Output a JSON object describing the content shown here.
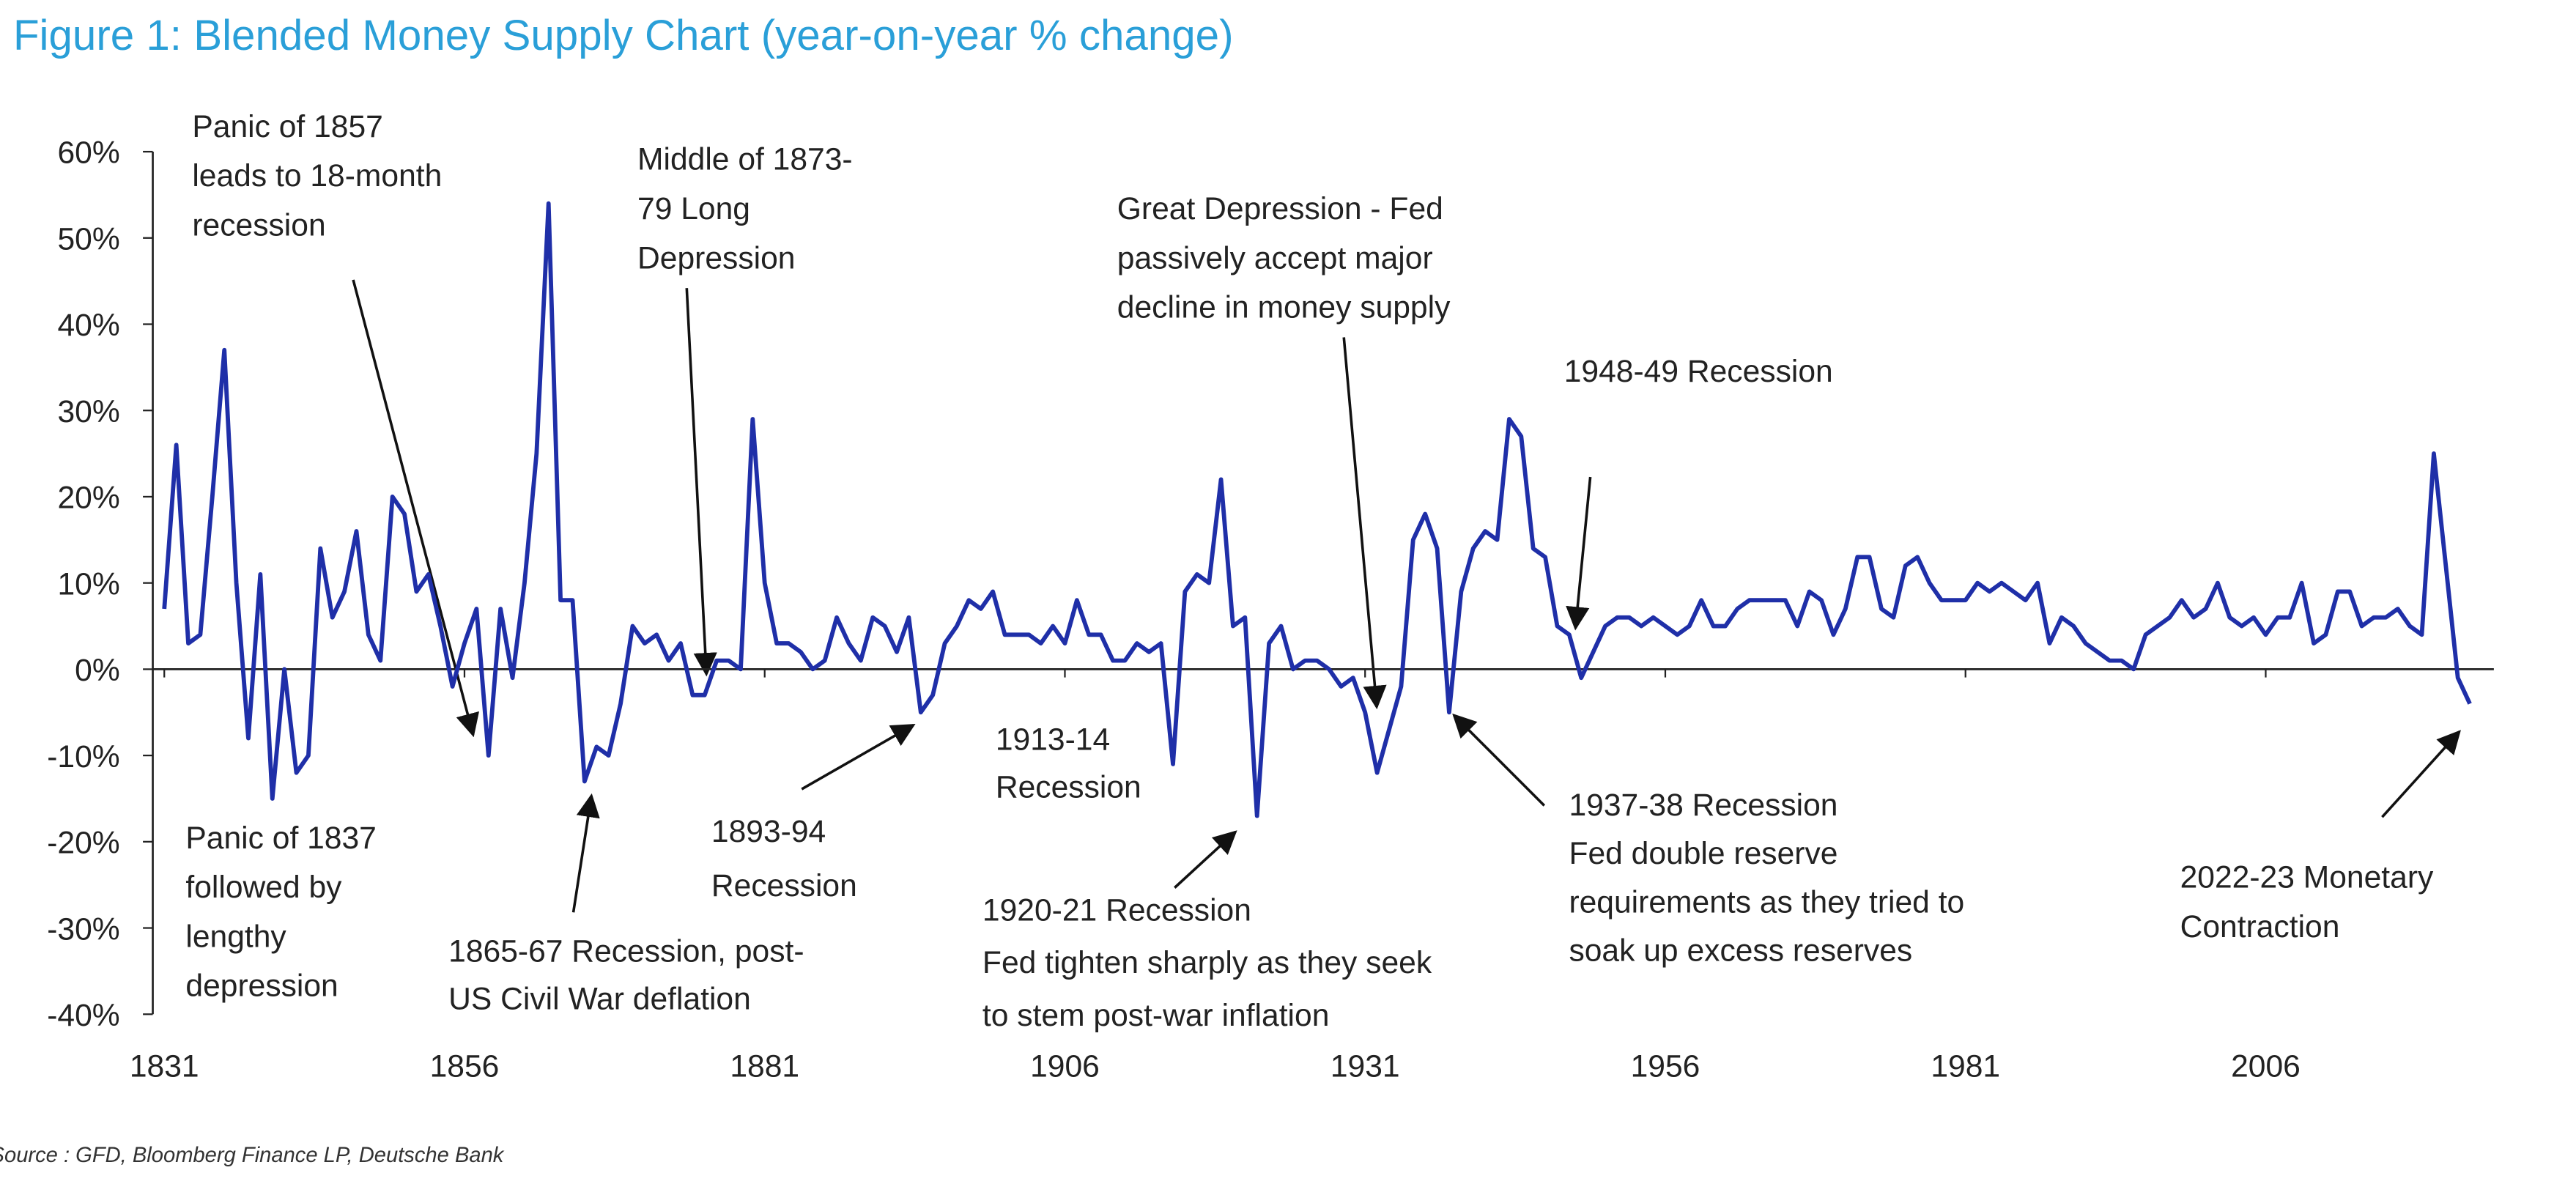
{
  "chart_data": {
    "type": "line",
    "title": "Figure 1: Blended Money Supply Chart (year-on-year % change)",
    "source": "Source : GFD, Bloomberg Finance LP, Deutsche Bank",
    "xlim": [
      1831,
      2025
    ],
    "xticks": [
      1831,
      1856,
      1881,
      1906,
      1931,
      1956,
      1981,
      2006
    ],
    "ylim": [
      -40,
      60
    ],
    "yticks": [
      {
        "value": 60,
        "label": "60%"
      },
      {
        "value": 50,
        "label": "50%"
      },
      {
        "value": 40,
        "label": "40%"
      },
      {
        "value": 30,
        "label": "30%"
      },
      {
        "value": 20,
        "label": "20%"
      },
      {
        "value": 10,
        "label": "10%"
      },
      {
        "value": 0,
        "label": "0%"
      },
      {
        "value": -10,
        "label": "-10%"
      },
      {
        "value": -20,
        "label": "-20%"
      },
      {
        "value": -30,
        "label": "-30%"
      },
      {
        "value": -40,
        "label": "-40%"
      }
    ],
    "x": [
      1831,
      1832,
      1833,
      1834,
      1835,
      1836,
      1837,
      1838,
      1839,
      1840,
      1841,
      1842,
      1843,
      1844,
      1845,
      1846,
      1847,
      1848,
      1849,
      1850,
      1851,
      1852,
      1853,
      1854,
      1855,
      1856,
      1857,
      1858,
      1859,
      1860,
      1861,
      1862,
      1863,
      1864,
      1865,
      1866,
      1867,
      1868,
      1869,
      1870,
      1871,
      1872,
      1873,
      1874,
      1875,
      1876,
      1877,
      1878,
      1879,
      1880,
      1881,
      1882,
      1883,
      1884,
      1885,
      1886,
      1887,
      1888,
      1889,
      1890,
      1891,
      1892,
      1893,
      1894,
      1895,
      1896,
      1897,
      1898,
      1899,
      1900,
      1901,
      1902,
      1903,
      1904,
      1905,
      1906,
      1907,
      1908,
      1909,
      1910,
      1911,
      1912,
      1913,
      1914,
      1915,
      1916,
      1917,
      1918,
      1919,
      1920,
      1921,
      1922,
      1923,
      1924,
      1925,
      1926,
      1927,
      1928,
      1929,
      1930,
      1931,
      1932,
      1933,
      1934,
      1935,
      1936,
      1937,
      1938,
      1939,
      1940,
      1941,
      1942,
      1943,
      1944,
      1945,
      1946,
      1947,
      1948,
      1949,
      1950,
      1951,
      1952,
      1953,
      1954,
      1955,
      1956,
      1957,
      1958,
      1959,
      1960,
      1961,
      1962,
      1963,
      1964,
      1965,
      1966,
      1967,
      1968,
      1969,
      1970,
      1971,
      1972,
      1973,
      1974,
      1975,
      1976,
      1977,
      1978,
      1979,
      1980,
      1981,
      1982,
      1983,
      1984,
      1985,
      1986,
      1987,
      1988,
      1989,
      1990,
      1991,
      1992,
      1993,
      1994,
      1995,
      1996,
      1997,
      1998,
      1999,
      2000,
      2001,
      2002,
      2003,
      2004,
      2005,
      2006,
      2007,
      2008,
      2009,
      2010,
      2011,
      2012,
      2013,
      2014,
      2015,
      2016,
      2017,
      2018,
      2019,
      2020,
      2021,
      2022,
      2023
    ],
    "series": [
      {
        "color": "#1f2fa8",
        "values": [
          7,
          26,
          3,
          4,
          20,
          37,
          10,
          -8,
          11,
          -15,
          0,
          -12,
          -10,
          14,
          6,
          9,
          16,
          4,
          1,
          20,
          18,
          9,
          11,
          5,
          -2,
          3,
          7,
          -10,
          7,
          -1,
          10,
          25,
          54,
          8,
          8,
          -13,
          -9,
          -10,
          -4,
          5,
          3,
          4,
          1,
          3,
          -3,
          -3,
          1,
          1,
          0,
          29,
          10,
          3,
          3,
          2,
          0,
          1,
          6,
          3,
          1,
          6,
          5,
          2,
          6,
          -5,
          -3,
          3,
          5,
          8,
          7,
          9,
          4,
          4,
          4,
          3,
          5,
          3,
          8,
          4,
          4,
          1,
          1,
          3,
          2,
          3,
          -11,
          9,
          11,
          10,
          22,
          5,
          6,
          -17,
          3,
          5,
          0,
          1,
          1,
          0,
          -2,
          -1,
          -5,
          -12,
          -7,
          -2,
          15,
          18,
          14,
          -5,
          9,
          14,
          16,
          15,
          29,
          27,
          14,
          13,
          5,
          4,
          -1,
          2,
          5,
          6,
          6,
          5,
          6,
          5,
          4,
          5,
          8,
          5,
          5,
          7,
          8,
          8,
          8,
          8,
          5,
          9,
          8,
          4,
          7,
          13,
          13,
          7,
          6,
          12,
          13,
          10,
          8,
          8,
          8,
          10,
          9,
          10,
          9,
          8,
          10,
          3,
          6,
          5,
          3,
          2,
          1,
          1,
          0,
          4,
          5,
          6,
          8,
          6,
          7,
          10,
          6,
          5,
          6,
          4,
          6,
          6,
          10,
          3,
          4,
          9,
          9,
          5,
          6,
          6,
          7,
          5,
          4,
          25,
          12,
          -1,
          -4
        ]
      }
    ],
    "annotations": [
      {
        "lines": [
          "Panic of 1857",
          "leads to 18-month",
          "recession"
        ]
      },
      {
        "lines": [
          "Middle of 1873-",
          "79 Long",
          "Depression"
        ]
      },
      {
        "lines": [
          "Great Depression - Fed",
          "passively accept major",
          "decline in money supply"
        ]
      },
      {
        "lines": [
          "1948-49 Recession"
        ]
      },
      {
        "lines": [
          "Panic of 1837",
          "followed by",
          "lengthy",
          "depression"
        ]
      },
      {
        "lines": [
          "1865-67 Recession, post-",
          "US Civil War deflation"
        ]
      },
      {
        "lines": [
          "1893-94",
          "Recession"
        ]
      },
      {
        "lines": [
          "1913-14",
          "Recession"
        ]
      },
      {
        "lines": [
          "1920-21 Recession",
          "Fed tighten sharply as they seek",
          "to stem post-war inflation"
        ]
      },
      {
        "lines": [
          "1937-38 Recession",
          "Fed double reserve",
          "requirements as they tried to",
          "soak up excess reserves"
        ]
      },
      {
        "lines": [
          "2022-23 Monetary",
          "Contraction"
        ]
      }
    ]
  }
}
